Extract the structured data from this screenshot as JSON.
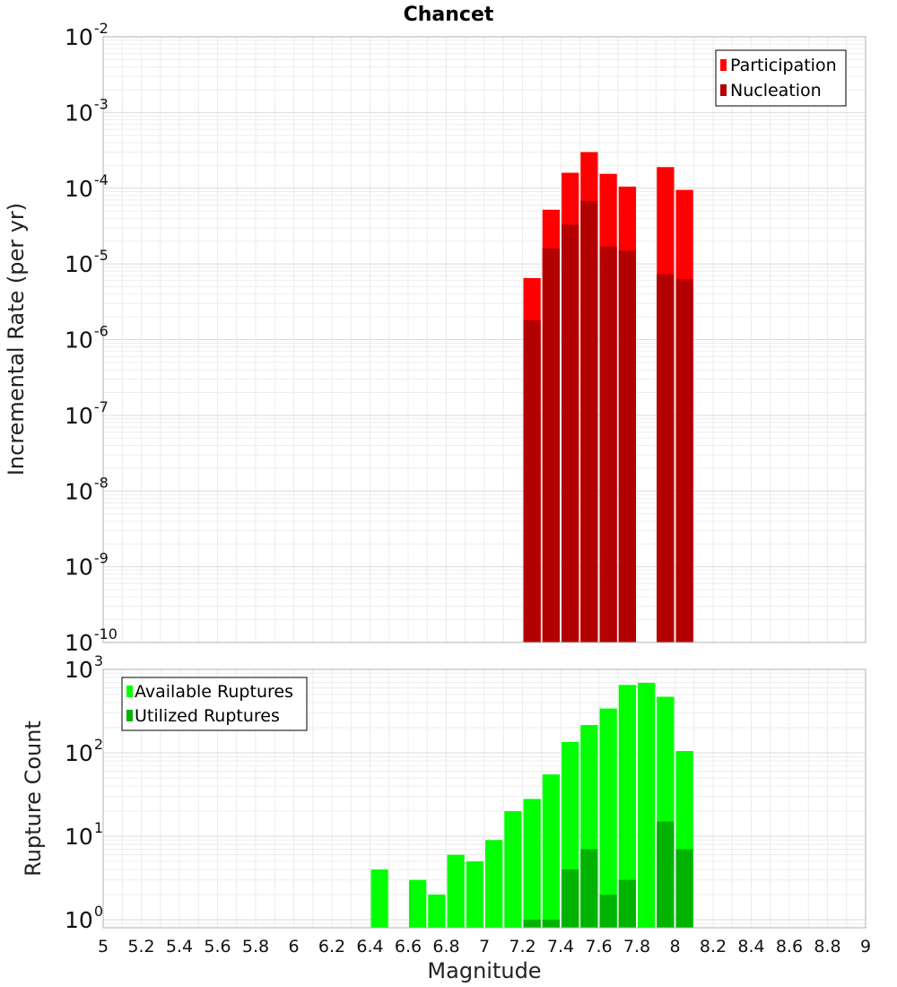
{
  "chart_data": [
    {
      "type": "bar",
      "panel": "top",
      "title": "Chancet",
      "ylabel": "Incremental Rate (per yr)",
      "xlabel": "",
      "yscale": "log",
      "ylim": [
        1e-10,
        0.01
      ],
      "xlim": [
        5,
        9
      ],
      "y_tick_labels": [
        "10-10",
        "10-9",
        "10-8",
        "10-7",
        "10-6",
        "10-5",
        "10-4",
        "10-3",
        "10-2"
      ],
      "y_tick_exponents": [
        -10,
        -9,
        -8,
        -7,
        -6,
        -5,
        -4,
        -3,
        -2
      ],
      "grid": true,
      "legend_position": "top-right",
      "bar_width": 0.1,
      "x": [
        7.25,
        7.35,
        7.45,
        7.55,
        7.65,
        7.75,
        7.95,
        8.05
      ],
      "series": [
        {
          "name": "Participation",
          "color": "#ff0000",
          "values": [
            6.5e-06,
            5.2e-05,
            0.00016,
            0.0003,
            0.000155,
            0.000105,
            0.00019,
            9.5e-05
          ]
        },
        {
          "name": "Nucleation",
          "color": "#b30000",
          "values": [
            1.8e-06,
            1.6e-05,
            3.3e-05,
            6.8e-05,
            1.7e-05,
            1.5e-05,
            7.3e-06,
            6.3e-06
          ]
        }
      ]
    },
    {
      "type": "bar",
      "panel": "bottom",
      "title": "",
      "ylabel": "Rupture Count",
      "xlabel": "Magnitude",
      "yscale": "log",
      "ylim": [
        0.8,
        1000
      ],
      "xlim": [
        5,
        9
      ],
      "x_ticks": [
        "5",
        "5.2",
        "5.4",
        "5.6",
        "5.8",
        "6",
        "6.2",
        "6.4",
        "6.6",
        "6.8",
        "7",
        "7.2",
        "7.4",
        "7.6",
        "7.8",
        "8",
        "8.2",
        "8.4",
        "8.6",
        "8.8",
        "9"
      ],
      "y_tick_labels": [
        "100",
        "101",
        "102",
        "103"
      ],
      "y_tick_exponents": [
        0,
        1,
        2,
        3
      ],
      "grid": true,
      "legend_position": "top-left",
      "bar_width": 0.1,
      "x": [
        6.45,
        6.65,
        6.75,
        6.85,
        6.95,
        7.05,
        7.15,
        7.25,
        7.35,
        7.45,
        7.55,
        7.65,
        7.75,
        7.85,
        7.95,
        8.05
      ],
      "series": [
        {
          "name": "Available Ruptures",
          "color": "#00ff00",
          "values": [
            4,
            3,
            2,
            6,
            5,
            9,
            20,
            28,
            55,
            135,
            215,
            340,
            650,
            690,
            470,
            105
          ]
        },
        {
          "name": "Utilized Ruptures",
          "color": "#00b300",
          "values": [
            0,
            0,
            0,
            0,
            0,
            0,
            0,
            1,
            1,
            4,
            7,
            2,
            3,
            0,
            15,
            7
          ]
        }
      ]
    }
  ]
}
